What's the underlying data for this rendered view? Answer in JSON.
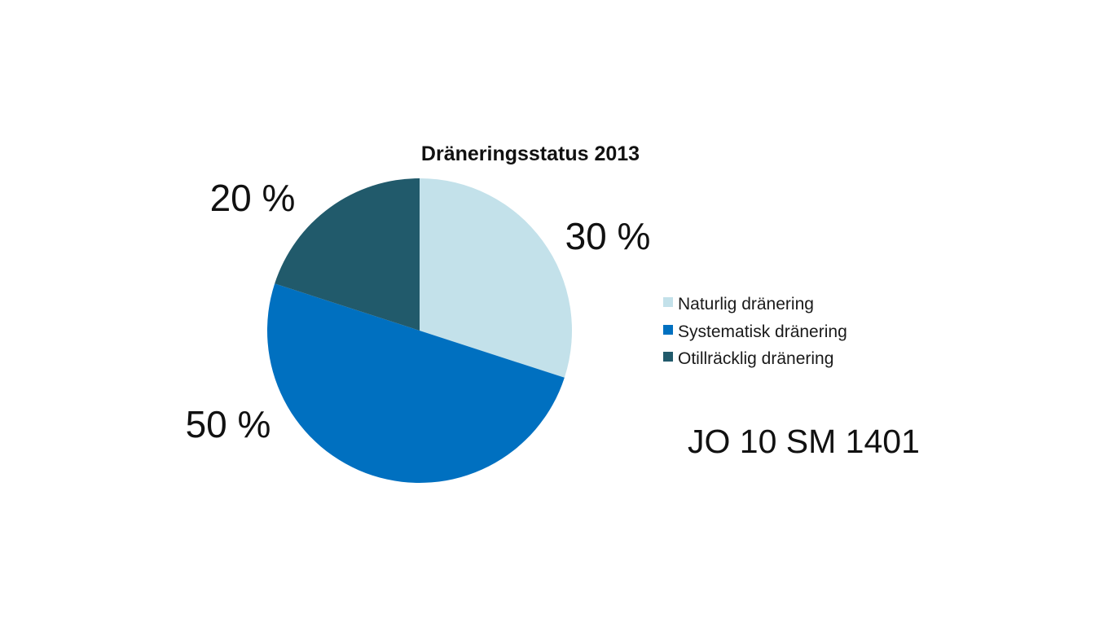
{
  "chart_data": {
    "type": "pie",
    "title": "Dräneringsstatus 2013",
    "categories": [
      "Naturlig dränering",
      "Systematisk dränering",
      "Otillräcklig dränering"
    ],
    "values": [
      30,
      50,
      20
    ],
    "value_labels": [
      "30 %",
      "50 %",
      "20 %"
    ],
    "colors": [
      "#c3e1ea",
      "#0070c0",
      "#215a6b"
    ],
    "start_angle_deg": 0,
    "direction": "clockwise",
    "legend_position": "right"
  },
  "footer": {
    "code": "JO 10 SM 1401"
  }
}
